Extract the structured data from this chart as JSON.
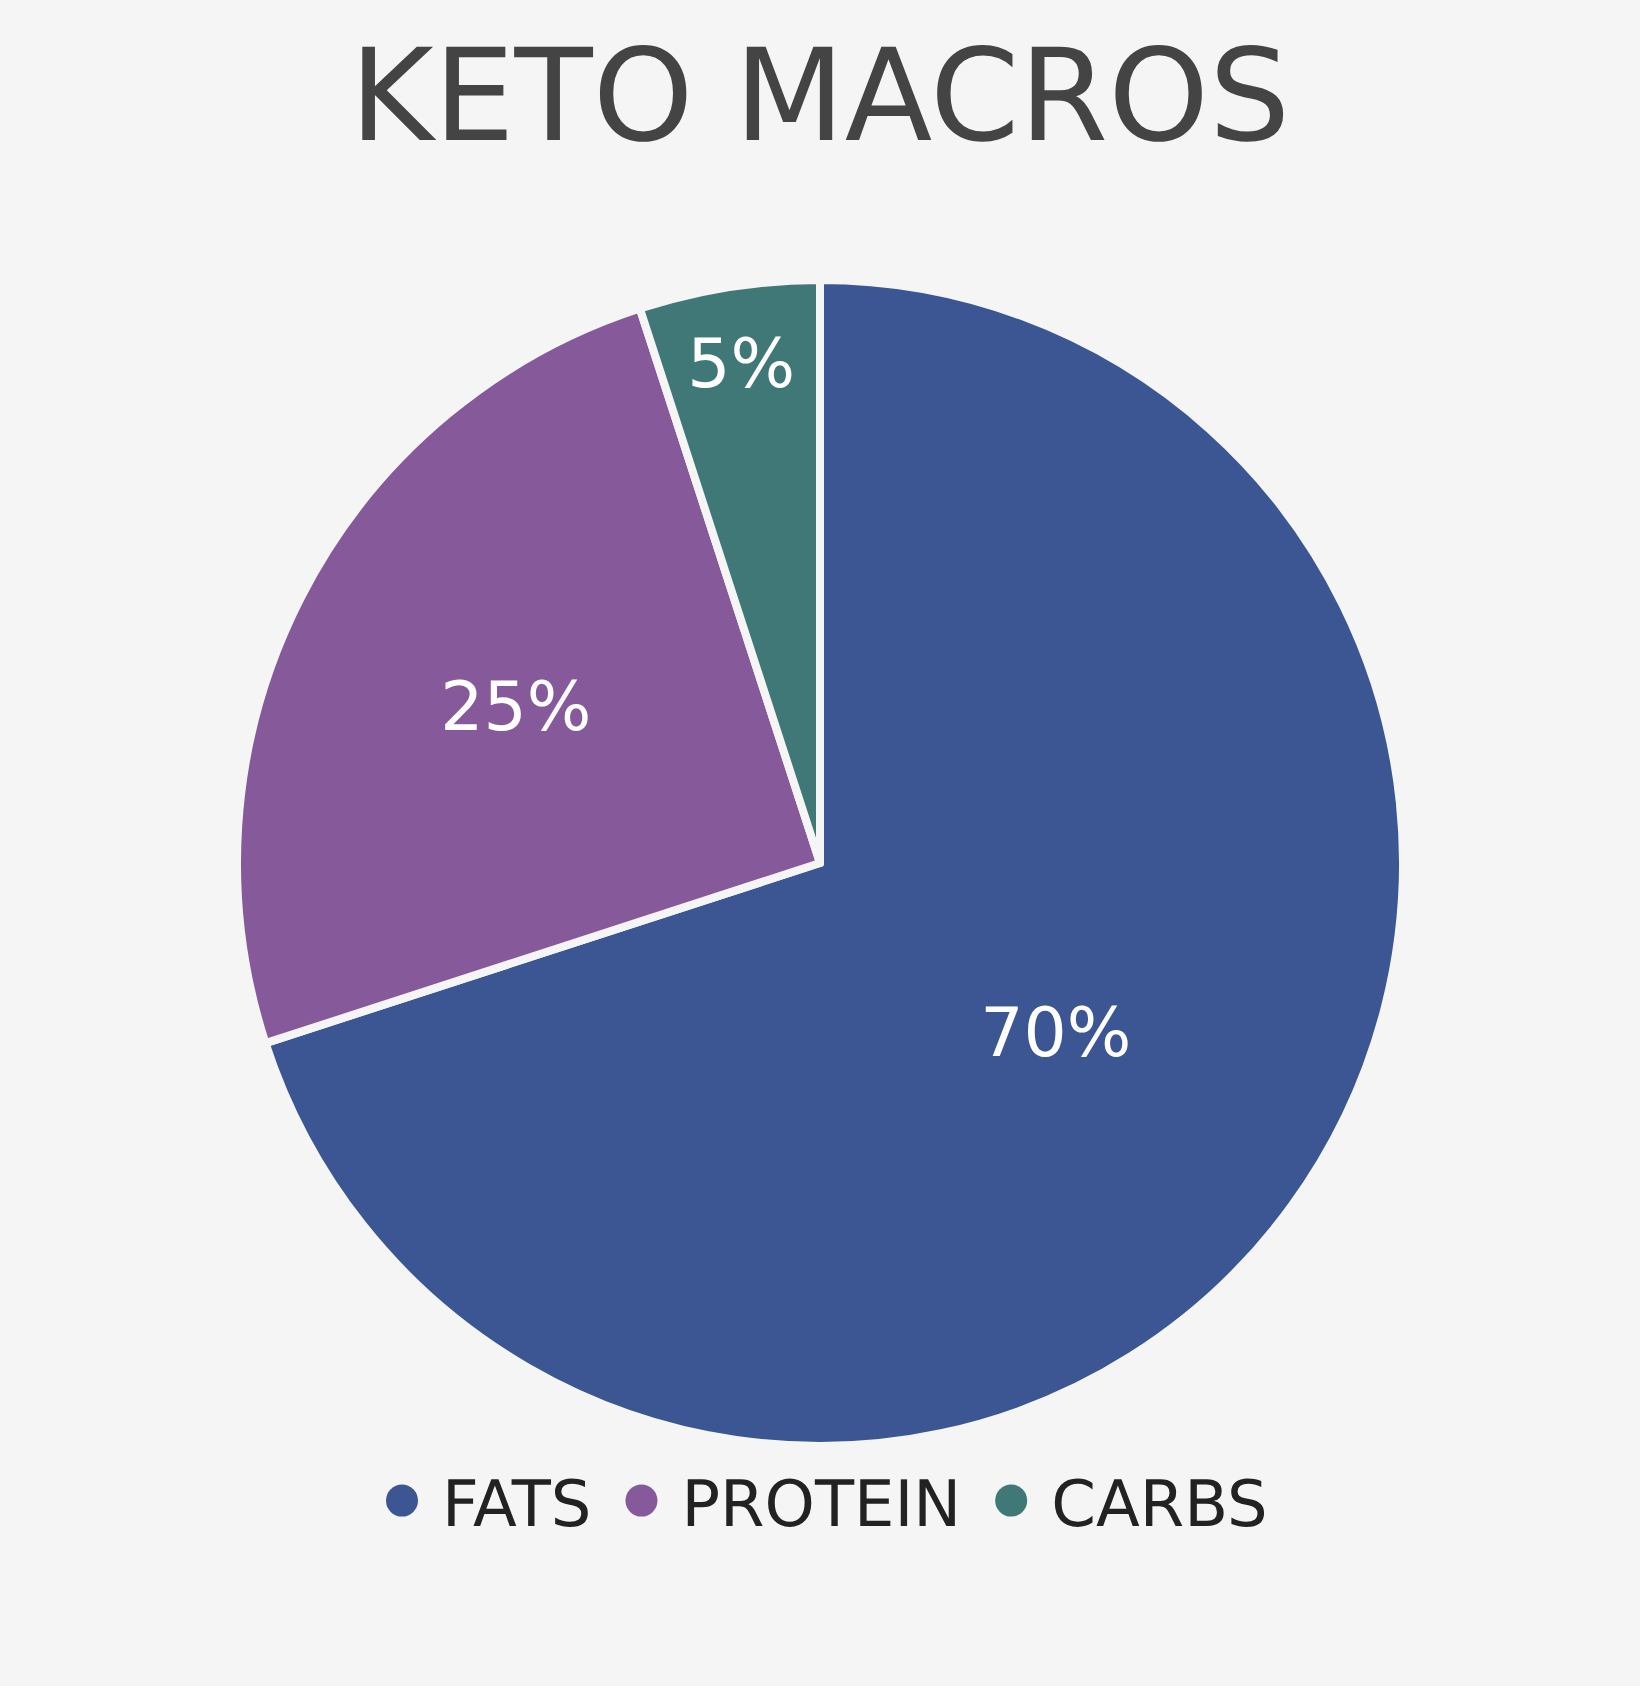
{
  "chart_data": {
    "type": "pie",
    "title": "KETO MACROS",
    "categories": [
      "FATS",
      "PROTEIN",
      "CARBS"
    ],
    "values": [
      70,
      25,
      5
    ],
    "value_labels": [
      "70%",
      "25%",
      "5%"
    ],
    "colors": [
      "#3b5692",
      "#86599a",
      "#3f7877"
    ],
    "legend": "bottom"
  }
}
